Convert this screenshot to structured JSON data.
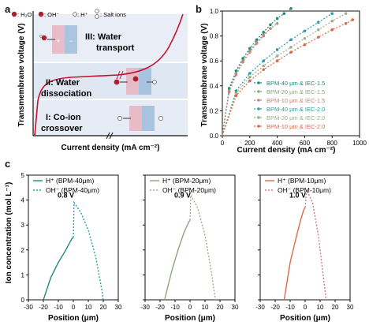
{
  "panel_labels": {
    "a": "a",
    "b": "b",
    "c": "c"
  },
  "colors": {
    "axis": "#111111",
    "curve_a": "#c8102e",
    "region_iii": "#e9eef6",
    "region_ii": "#dfe7f3",
    "region_i": "#e6ecf5",
    "bpm40_h": "#1f8a7a",
    "bpm40_oh": "#2f9aa8",
    "bpm20_h": "#8aa87c",
    "bpm20_oh": "#9ab08a",
    "bpm10_h": "#d86a4a",
    "bpm10_oh": "#c98080",
    "iec15": "#3aa69a",
    "iec20": "#e07a6a"
  },
  "panel_a": {
    "xlabel": "Current density (mA cm⁻²)",
    "ylabel": "Transmembrane voltage (V)",
    "legend": {
      "h2o": ": H₂O",
      "oh": ": OH⁻",
      "h": ": H⁺",
      "salt": ": Salt ions"
    },
    "regions": {
      "iii_line1": "III: Water",
      "iii_line2": "transport",
      "ii_line1": "II: Water",
      "ii_line2": "dissociation",
      "i_line1": "I: Co-ion",
      "i_line2": "crossover"
    }
  },
  "chart_data": [
    {
      "type": "line",
      "panel": "b",
      "xlabel": "Current density (mA cm⁻²)",
      "ylabel": "Transmembrane voltage (V)",
      "xlim": [
        0,
        1000
      ],
      "ylim": [
        0,
        1.0
      ],
      "xticks": [
        0,
        200,
        400,
        600,
        800,
        1000
      ],
      "yticks": [
        0.0,
        0.2,
        0.4,
        0.6,
        0.8,
        1.0
      ],
      "legend_placement": "bottom-right",
      "series": [
        {
          "name": "BPM-40 μm & IEC-1.5",
          "color": "#1f8a7a",
          "style": "dotted",
          "x": [
            0,
            50,
            100,
            150,
            200,
            250,
            300,
            350,
            400,
            450,
            500
          ],
          "y": [
            0,
            0.38,
            0.52,
            0.62,
            0.7,
            0.77,
            0.83,
            0.89,
            0.94,
            0.98,
            1.02
          ]
        },
        {
          "name": "BPM-20 μm & IEC-1.5",
          "color": "#8aa87c",
          "style": "dotted",
          "x": [
            0,
            50,
            100,
            150,
            200,
            250,
            300,
            350,
            400
          ],
          "y": [
            0,
            0.36,
            0.5,
            0.6,
            0.68,
            0.75,
            0.81,
            0.86,
            0.9
          ]
        },
        {
          "name": "BPM-10 μm & IEC-1.5",
          "color": "#c98080",
          "style": "dotted",
          "x": [
            0,
            50,
            100,
            150,
            200,
            250,
            300,
            350
          ],
          "y": [
            0,
            0.35,
            0.49,
            0.59,
            0.67,
            0.74,
            0.8,
            0.86
          ]
        },
        {
          "name": "BPM-40 μm & IEC-2.0",
          "color": "#2f9aa8",
          "style": "dotted",
          "x": [
            0,
            100,
            200,
            300,
            400,
            500,
            600,
            700,
            800
          ],
          "y": [
            0,
            0.36,
            0.5,
            0.6,
            0.69,
            0.77,
            0.84,
            0.91,
            0.98
          ]
        },
        {
          "name": "BPM-20 μm & IEC-2.0",
          "color": "#9ab08a",
          "style": "dotted",
          "x": [
            0,
            100,
            200,
            300,
            400,
            500,
            600,
            700,
            800,
            900
          ],
          "y": [
            0,
            0.34,
            0.47,
            0.56,
            0.64,
            0.71,
            0.78,
            0.85,
            0.92,
            0.98
          ]
        },
        {
          "name": "BPM-10 μm & IEC-2.0",
          "color": "#d86a4a",
          "style": "dotted",
          "x": [
            0,
            100,
            200,
            300,
            400,
            500,
            600,
            700,
            800,
            900,
            950
          ],
          "y": [
            0,
            0.32,
            0.44,
            0.53,
            0.6,
            0.67,
            0.73,
            0.79,
            0.85,
            0.9,
            0.93
          ]
        }
      ]
    },
    {
      "type": "line",
      "panel": "c1",
      "xlabel": "Position (μm)",
      "ylabel": "Ion concentration (mol L⁻¹)",
      "xlim": [
        -30,
        30
      ],
      "ylim": [
        0,
        5
      ],
      "xticks": [
        -30,
        -20,
        -10,
        0,
        10,
        20,
        30
      ],
      "yticks": [
        0,
        1,
        2,
        3,
        4,
        5
      ],
      "annotation": "0.8 V",
      "legend": [
        "H⁺ (BPM-40μm)",
        "OH⁻ (BPM-40μm)"
      ],
      "series": [
        {
          "name": "H⁺ (BPM-40μm)",
          "color": "#1f8a7a",
          "style": "solid",
          "x": [
            -20,
            -15,
            -10,
            -5,
            -1,
            0
          ],
          "y": [
            0,
            0.9,
            1.5,
            2.0,
            2.45,
            2.5
          ]
        },
        {
          "name": "OH⁻ (BPM-40μm)",
          "color": "#2f9aa8",
          "style": "dotted",
          "x": [
            0,
            0.5,
            5,
            10,
            15,
            19,
            20
          ],
          "y": [
            2.5,
            3.9,
            3.5,
            2.8,
            1.7,
            0.4,
            0
          ]
        }
      ]
    },
    {
      "type": "line",
      "panel": "c2",
      "xlabel": "Position (μm)",
      "ylabel": "",
      "xlim": [
        -30,
        30
      ],
      "ylim": [
        0,
        5
      ],
      "xticks": [
        -30,
        -20,
        -10,
        0,
        10,
        20,
        30
      ],
      "annotation": "0.9 V",
      "legend": [
        "H⁺ (BPM-20μm)",
        "OH⁻ (BPM-20μm)"
      ],
      "series": [
        {
          "name": "H⁺ (BPM-20μm)",
          "color": "#8aa87c",
          "style": "solid",
          "x": [
            -17,
            -12,
            -8,
            -4,
            -1,
            0
          ],
          "y": [
            0,
            1.2,
            2.0,
            2.7,
            3.1,
            3.2
          ]
        },
        {
          "name": "OH⁻ (BPM-20μm)",
          "color": "#9ab08a",
          "style": "dotted",
          "x": [
            0,
            0.5,
            5,
            10,
            14,
            17
          ],
          "y": [
            3.2,
            4.2,
            3.7,
            2.6,
            1.2,
            0
          ]
        }
      ]
    },
    {
      "type": "line",
      "panel": "c3",
      "xlabel": "Position (μm)",
      "ylabel": "",
      "xlim": [
        -30,
        30
      ],
      "ylim": [
        0,
        5
      ],
      "xticks": [
        -30,
        -20,
        -10,
        0,
        10,
        20,
        30
      ],
      "annotation": "1.0 V",
      "legend": [
        "H⁺ (BPM-10μm)",
        "OH⁻ (BPM-10μm)"
      ],
      "series": [
        {
          "name": "H⁺ (BPM-10μm)",
          "color": "#d86a4a",
          "style": "solid",
          "x": [
            -14,
            -10,
            -6,
            -3,
            -1,
            0
          ],
          "y": [
            0,
            1.5,
            2.5,
            3.2,
            3.6,
            3.7
          ]
        },
        {
          "name": "OH⁻ (BPM-10μm)",
          "color": "#c98080",
          "style": "dotted",
          "x": [
            0,
            1,
            5,
            9,
            12,
            14
          ],
          "y": [
            3.7,
            4.4,
            3.9,
            2.5,
            1.0,
            0
          ]
        }
      ]
    }
  ]
}
